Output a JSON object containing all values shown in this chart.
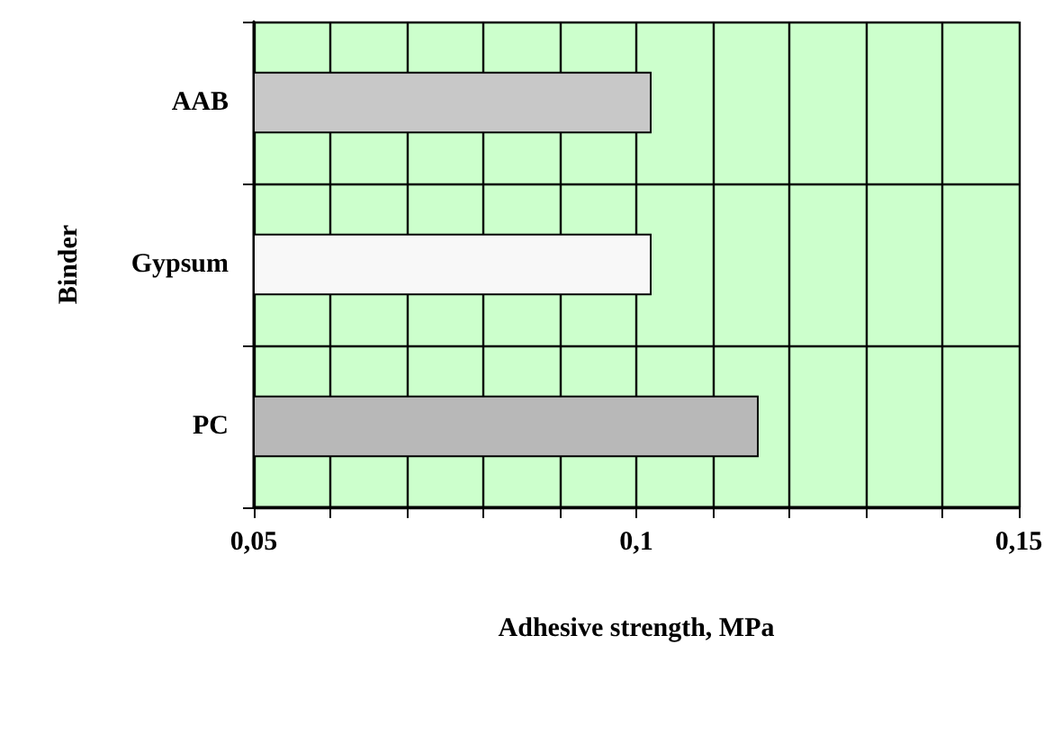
{
  "chart_data": {
    "type": "bar",
    "orientation": "horizontal",
    "xlabel": "Adhesive strength, MPa",
    "ylabel": "Binder",
    "categories": [
      "AAB",
      "Gypsum",
      "PC"
    ],
    "values": [
      0.102,
      0.102,
      0.116
    ],
    "colors": [
      "#c8c8c8",
      "#f8f8f8",
      "#b8b8b8"
    ],
    "xlim": [
      0.05,
      0.15
    ],
    "xticks": [
      {
        "value": 0.05,
        "label": "0,05"
      },
      {
        "value": 0.06,
        "label": null
      },
      {
        "value": 0.07,
        "label": null
      },
      {
        "value": 0.08,
        "label": null
      },
      {
        "value": 0.09,
        "label": null
      },
      {
        "value": 0.1,
        "label": "0,1"
      },
      {
        "value": 0.11,
        "label": null
      },
      {
        "value": 0.12,
        "label": null
      },
      {
        "value": 0.13,
        "label": null
      },
      {
        "value": 0.14,
        "label": null
      },
      {
        "value": 0.15,
        "label": "0,15"
      }
    ],
    "grid": true
  }
}
